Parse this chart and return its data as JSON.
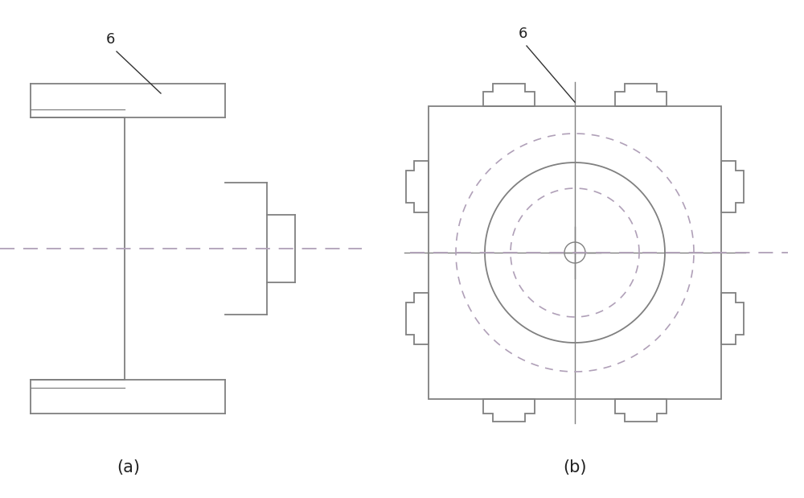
{
  "line_color": "#808080",
  "dash_color": "#b0a0b8",
  "label_color": "#222222",
  "bg_color": "#ffffff",
  "fig_label_a": "(a)",
  "fig_label_b": "(b)",
  "label_6": "6",
  "linewidth": 1.3,
  "thin_lw": 0.9,
  "cross_lw": 1.0
}
